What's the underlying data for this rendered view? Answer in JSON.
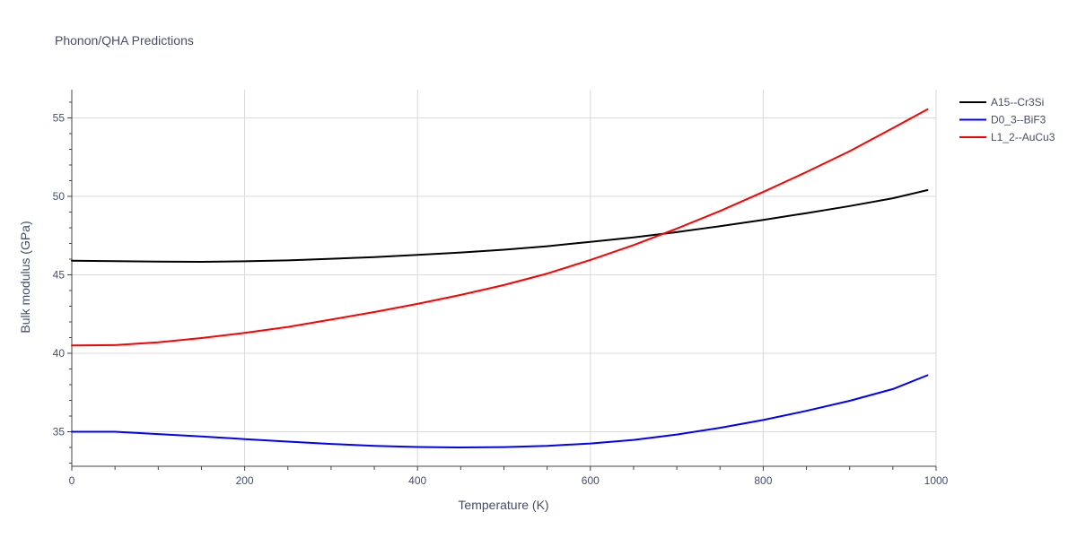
{
  "chart_data": {
    "type": "line",
    "title": "Phonon/QHA Predictions",
    "xlabel": "Temperature (K)",
    "ylabel": "Bulk modulus (GPa)",
    "xlim": [
      0,
      1000
    ],
    "ylim": [
      32.8,
      56.8
    ],
    "x_ticks": [
      0,
      200,
      400,
      600,
      800,
      1000
    ],
    "y_ticks": [
      35,
      40,
      45,
      50,
      55
    ],
    "grid": true,
    "legend_position": "top-right",
    "series": [
      {
        "name": "A15--Cr3Si",
        "color": "#000000",
        "x": [
          0,
          50,
          100,
          150,
          200,
          250,
          300,
          350,
          400,
          450,
          500,
          550,
          600,
          650,
          700,
          750,
          800,
          850,
          900,
          950,
          990
        ],
        "y": [
          45.9,
          45.87,
          45.84,
          45.83,
          45.86,
          45.92,
          46.02,
          46.13,
          46.27,
          46.42,
          46.6,
          46.82,
          47.1,
          47.38,
          47.72,
          48.1,
          48.5,
          48.93,
          49.38,
          49.88,
          50.4
        ]
      },
      {
        "name": "D0_3--BiF3",
        "color": "#0000ff",
        "x": [
          0,
          50,
          100,
          150,
          200,
          250,
          300,
          350,
          400,
          450,
          500,
          550,
          600,
          650,
          700,
          750,
          800,
          850,
          900,
          950,
          990
        ],
        "y": [
          35.0,
          35.0,
          34.85,
          34.7,
          34.53,
          34.37,
          34.22,
          34.1,
          34.03,
          34.0,
          34.02,
          34.1,
          34.25,
          34.48,
          34.82,
          35.25,
          35.75,
          36.33,
          36.97,
          37.72,
          38.6
        ]
      },
      {
        "name": "L1_2--AuCu3",
        "color": "#ff0000",
        "x": [
          0,
          50,
          100,
          150,
          200,
          250,
          300,
          350,
          400,
          450,
          500,
          550,
          600,
          650,
          700,
          750,
          800,
          850,
          900,
          950,
          990
        ],
        "y": [
          40.5,
          40.52,
          40.7,
          40.97,
          41.3,
          41.68,
          42.15,
          42.63,
          43.15,
          43.72,
          44.35,
          45.08,
          45.95,
          46.9,
          47.95,
          49.07,
          50.28,
          51.55,
          52.88,
          54.35,
          55.55
        ]
      }
    ]
  }
}
